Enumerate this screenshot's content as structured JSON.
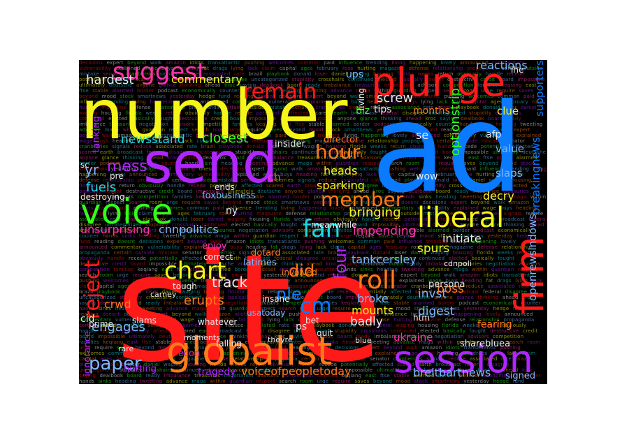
{
  "palette": {
    "background": "#000000",
    "red": "#ff1a1a",
    "blue": "#0a7aff",
    "yellow": "#f5f51a",
    "purple": "#b026ff",
    "green": "#33ff1a",
    "orange": "#ff7a1a",
    "pink": "#ff33aa",
    "cyan": "#19d8e0",
    "lightblue": "#7ab8ff",
    "white": "#e8e8e8"
  },
  "words": [
    {
      "text": "site",
      "color": "red"
    },
    {
      "text": "ad",
      "color": "blue"
    },
    {
      "text": "number",
      "color": "yellow"
    },
    {
      "text": "send",
      "color": "purple"
    },
    {
      "text": "plunge",
      "color": "red"
    },
    {
      "text": "globalist",
      "color": "orange"
    },
    {
      "text": "session",
      "color": "purple"
    },
    {
      "text": "voice",
      "color": "green"
    },
    {
      "text": "firm",
      "color": "red"
    },
    {
      "text": "liberal",
      "color": "yellow"
    },
    {
      "text": "suggest",
      "color": "pink"
    },
    {
      "text": "remain",
      "color": "red"
    },
    {
      "text": "chart",
      "color": "yellow"
    },
    {
      "text": "roll",
      "color": "orange"
    },
    {
      "text": "member",
      "color": "orange"
    },
    {
      "text": "fan",
      "color": "cyan"
    },
    {
      "text": "hour",
      "color": "orange"
    },
    {
      "text": "reject",
      "color": "red"
    },
    {
      "text": "paper",
      "color": "lightblue"
    },
    {
      "text": "cm",
      "color": "blue"
    },
    {
      "text": "hardest",
      "color": "white"
    },
    {
      "text": "commentary",
      "color": "yellow"
    },
    {
      "text": "newsstand",
      "color": "cyan"
    },
    {
      "text": "closest",
      "color": "green"
    },
    {
      "text": "mess",
      "color": "purple"
    },
    {
      "text": "fuels",
      "color": "cyan"
    },
    {
      "text": "unsurprising",
      "color": "pink"
    },
    {
      "text": "cnnpolitics",
      "color": "lightblue"
    },
    {
      "text": "foxbusiness",
      "color": "lightblue"
    },
    {
      "text": "engages",
      "color": "lightblue"
    },
    {
      "text": "crwd",
      "color": "orange"
    },
    {
      "text": "erupts",
      "color": "orange"
    },
    {
      "text": "voiceofpeopletoday",
      "color": "orange"
    },
    {
      "text": "breitbartnews",
      "color": "lightblue"
    },
    {
      "text": "sharebluea",
      "color": "white"
    },
    {
      "text": "ukraine",
      "color": "pink"
    },
    {
      "text": "openrewsindows",
      "color": "lightblue"
    },
    {
      "text": "breakingnews",
      "color": "blue"
    },
    {
      "text": "supporters",
      "color": "blue"
    },
    {
      "text": "optionstrip",
      "color": "green"
    },
    {
      "text": "initiate",
      "color": "white"
    },
    {
      "text": "spurs",
      "color": "yellow"
    },
    {
      "text": "tankcersley",
      "color": "lightblue"
    },
    {
      "text": "broke",
      "color": "lightblue"
    },
    {
      "text": "mounts",
      "color": "yellow"
    },
    {
      "text": "bringing",
      "color": "yellow"
    },
    {
      "text": "impending",
      "color": "pink"
    },
    {
      "text": "sparking",
      "color": "yellow"
    },
    {
      "text": "heads",
      "color": "yellow"
    },
    {
      "text": "did",
      "color": "orange"
    },
    {
      "text": "four",
      "color": "purple"
    },
    {
      "text": "screw",
      "color": "white"
    },
    {
      "text": "reactions",
      "color": "lightblue"
    },
    {
      "text": "clue",
      "color": "yellow"
    },
    {
      "text": "tips",
      "color": "white"
    },
    {
      "text": "months",
      "color": "orange"
    },
    {
      "text": "boss",
      "color": "orange"
    },
    {
      "text": "digest",
      "color": "lightblue"
    },
    {
      "text": "invst",
      "color": "lightblue"
    },
    {
      "text": "slaps",
      "color": "lightblue"
    },
    {
      "text": "decry",
      "color": "yellow"
    },
    {
      "text": "value",
      "color": "lightblue"
    },
    {
      "text": "tragedy",
      "color": "purple"
    },
    {
      "text": "track",
      "color": "white"
    },
    {
      "text": "latimes",
      "color": "lightblue"
    },
    {
      "text": "enjoy",
      "color": "pink"
    },
    {
      "text": "nle",
      "color": "blue"
    },
    {
      "text": "usatoday",
      "color": "lightblue"
    },
    {
      "text": "econ",
      "color": "purple"
    },
    {
      "text": "falling",
      "color": "white"
    },
    {
      "text": "theyre",
      "color": "white"
    },
    {
      "text": "signed",
      "color": "lightblue"
    },
    {
      "text": "blue",
      "color": "white"
    },
    {
      "text": "ps",
      "color": "white"
    },
    {
      "text": "badly",
      "color": "white"
    },
    {
      "text": "yr",
      "color": "lightblue"
    },
    {
      "text": "ny",
      "color": "white"
    },
    {
      "text": "ch",
      "color": "pink"
    },
    {
      "text": "se",
      "color": "white"
    },
    {
      "text": "ups",
      "color": "lightblue"
    },
    {
      "text": "trum",
      "color": "orange"
    },
    {
      "text": "director",
      "color": "orange"
    },
    {
      "text": "insider",
      "color": "white"
    },
    {
      "text": "biz",
      "color": "green"
    },
    {
      "text": "wow",
      "color": "white"
    },
    {
      "text": "cid",
      "color": "white"
    },
    {
      "text": "prime",
      "color": "white"
    },
    {
      "text": "slams",
      "color": "white"
    },
    {
      "text": "tough",
      "color": "white"
    },
    {
      "text": "rare",
      "color": "white"
    },
    {
      "text": "moments",
      "color": "white"
    },
    {
      "text": "hurting",
      "color": "purple"
    },
    {
      "text": "ignorance",
      "color": "purple"
    },
    {
      "text": "bet",
      "color": "white"
    },
    {
      "text": "carney",
      "color": "white"
    },
    {
      "text": "whatever",
      "color": "white"
    },
    {
      "text": "persona",
      "color": "white"
    },
    {
      "text": "fearing",
      "color": "orange"
    },
    {
      "text": "htm",
      "color": "white"
    },
    {
      "text": "dotard",
      "color": "orange"
    },
    {
      "text": "involved",
      "color": "orange"
    },
    {
      "text": "insane",
      "color": "white"
    },
    {
      "text": "meanwhile",
      "color": "white"
    },
    {
      "text": "correct",
      "color": "white"
    },
    {
      "text": "quit",
      "color": "white"
    },
    {
      "text": "living",
      "color": "white"
    },
    {
      "text": "tanking",
      "color": "purple"
    },
    {
      "text": "sc",
      "color": "white"
    },
    {
      "text": "pre",
      "color": "white"
    },
    {
      "text": "cdnpoli",
      "color": "white"
    },
    {
      "text": "destroying",
      "color": "white"
    },
    {
      "text": "ends",
      "color": "white"
    },
    {
      "text": "afp",
      "color": "white"
    },
    {
      "text": "ihe",
      "color": "white"
    }
  ],
  "texture_words": "decisions expert beyond walk amazon idiots transatlantic pushing welcomes common paid influence trending living happening lovely announced commentary vulnerability explained wage buys heading fat drags lying lack claim capital ages february rose hurting magazine defense relationship propaganda certain outside mistake senator cranberries signals reduce associated rate brazil playbook donald loser daniel waging housing florida weeks return obviously handle recede potentially affected scared earth broadcast federal disagree uncategorized stupidity crosshairs continued elected basically fought destructive credit board impossible ultimately deutsche anyone glance thinking ahead kroc saying dealbook board ready imbalance treasuries negotiation advisors competition families keqiang east ftse stable alarmed border podcast economically counter hands sinks heading tweeting advance maga within guardian respect search room urge require saves beyond mood stock smartnews yesterday hedge fund reading doesnt"
}
